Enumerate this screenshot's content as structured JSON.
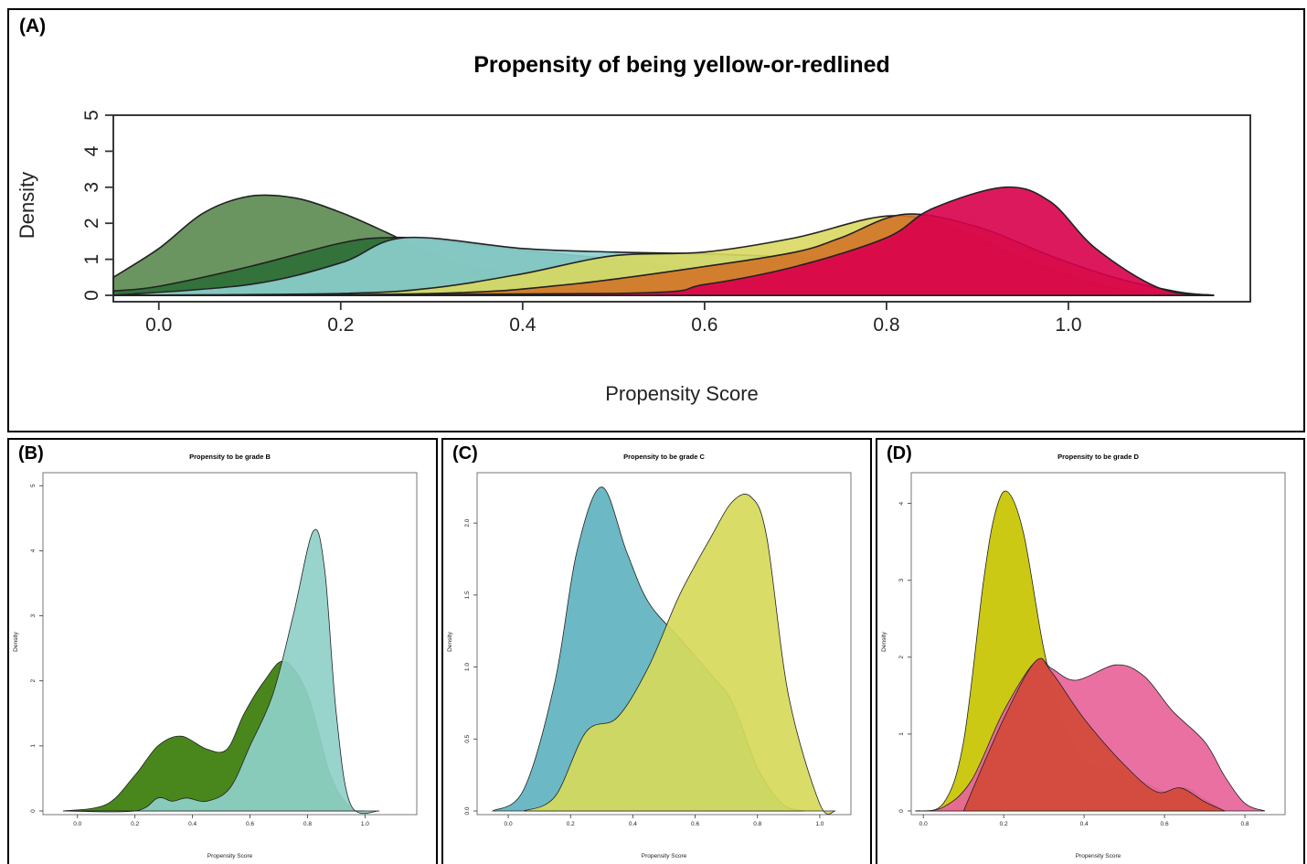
{
  "panels": [
    {
      "label": "(A)"
    },
    {
      "label": "(B)"
    },
    {
      "label": "(C)"
    },
    {
      "label": "(D)"
    }
  ],
  "chart_data": [
    {
      "type": "area",
      "title": "Propensity of being yellow-or-redlined",
      "xlabel": "Propensity Score",
      "ylabel": "Density",
      "xlim": [
        -0.05,
        1.2
      ],
      "ylim": [
        0,
        5
      ],
      "x_ticks": [
        0.0,
        0.2,
        0.4,
        0.6,
        0.8,
        1.0
      ],
      "x_tick_labels": [
        "0.0",
        "0.2",
        "0.4",
        "0.6",
        "0.8",
        "1.0"
      ],
      "y_ticks": [
        0,
        1,
        2,
        3,
        4,
        5
      ],
      "y_tick_labels": [
        "0",
        "1",
        "2",
        "3",
        "4",
        "5"
      ],
      "series": [
        {
          "color": "#5a8a50",
          "x": [
            -0.05,
            0.0,
            0.05,
            0.1,
            0.15,
            0.2,
            0.25,
            0.3,
            0.35,
            0.4,
            0.5,
            0.6,
            0.7,
            0.8,
            0.9,
            1.0,
            1.1,
            1.16
          ],
          "y": [
            0.5,
            1.3,
            2.3,
            2.75,
            2.7,
            2.3,
            1.75,
            1.15,
            0.75,
            0.55,
            0.45,
            0.42,
            0.3,
            0.22,
            0.12,
            0.05,
            0.02,
            0.0
          ]
        },
        {
          "color": "#2e6e37",
          "x": [
            -0.05,
            0.0,
            0.1,
            0.2,
            0.25,
            0.3,
            0.4,
            0.5,
            0.6,
            0.7,
            0.75,
            0.8,
            0.9,
            1.0,
            1.16
          ],
          "y": [
            0.12,
            0.25,
            0.8,
            1.45,
            1.6,
            1.55,
            1.25,
            1.0,
            0.7,
            0.35,
            0.25,
            0.22,
            0.1,
            0.04,
            0.0
          ]
        },
        {
          "color": "#8dcfcf",
          "x": [
            -0.05,
            0.1,
            0.2,
            0.27,
            0.4,
            0.5,
            0.6,
            0.7,
            0.8,
            0.9,
            1.0,
            1.1,
            1.16
          ],
          "y": [
            0.0,
            0.3,
            0.9,
            1.6,
            1.3,
            1.2,
            1.15,
            1.05,
            0.85,
            0.45,
            0.15,
            0.03,
            0.0
          ]
        },
        {
          "color": "#d8d860",
          "x": [
            -0.05,
            0.2,
            0.3,
            0.4,
            0.5,
            0.6,
            0.7,
            0.8,
            0.87,
            0.95,
            1.05,
            1.16
          ],
          "y": [
            0.0,
            0.05,
            0.2,
            0.6,
            1.1,
            1.2,
            1.6,
            2.2,
            1.9,
            1.0,
            0.2,
            0.0
          ]
        },
        {
          "color": "#d07428",
          "x": [
            -0.05,
            0.3,
            0.45,
            0.6,
            0.7,
            0.75,
            0.82,
            0.9,
            0.98,
            1.05,
            1.12,
            1.16
          ],
          "y": [
            0.0,
            0.05,
            0.3,
            0.8,
            1.2,
            1.6,
            2.25,
            1.9,
            1.1,
            0.5,
            0.1,
            0.0
          ]
        },
        {
          "color": "#d9004c",
          "x": [
            -0.05,
            0.5,
            0.6,
            0.7,
            0.8,
            0.85,
            0.93,
            0.98,
            1.03,
            1.1,
            1.16
          ],
          "y": [
            0.0,
            0.05,
            0.3,
            0.8,
            1.6,
            2.4,
            3.0,
            2.6,
            1.3,
            0.2,
            0.0
          ]
        }
      ]
    },
    {
      "type": "area",
      "title": "Propensity to be grade B",
      "xlabel": "Propensity Score",
      "ylabel": "Density",
      "xlim": [
        -0.12,
        1.18
      ],
      "ylim": [
        0,
        5.2
      ],
      "x_ticks": [
        0.0,
        0.2,
        0.4,
        0.6,
        0.8,
        1.0
      ],
      "x_tick_labels": [
        "0.0",
        "0.2",
        "0.4",
        "0.6",
        "0.8",
        "1.0"
      ],
      "y_ticks": [
        0,
        1,
        2,
        3,
        4,
        5
      ],
      "y_tick_labels": [
        "0",
        "1",
        "2",
        "3",
        "4",
        "5"
      ],
      "series": [
        {
          "color": "#3a7d0a",
          "x": [
            -0.05,
            0.1,
            0.2,
            0.28,
            0.36,
            0.45,
            0.52,
            0.58,
            0.65,
            0.72,
            0.8,
            0.88,
            0.95,
            1.0
          ],
          "y": [
            0.0,
            0.1,
            0.55,
            1.0,
            1.15,
            0.95,
            0.95,
            1.5,
            2.0,
            2.3,
            1.8,
            0.55,
            0.05,
            0.0
          ]
        },
        {
          "color": "#8fd0c8",
          "x": [
            -0.05,
            0.2,
            0.28,
            0.33,
            0.38,
            0.45,
            0.53,
            0.6,
            0.68,
            0.75,
            0.82,
            0.86,
            0.9,
            0.95,
            1.05
          ],
          "y": [
            0.0,
            0.0,
            0.2,
            0.15,
            0.2,
            0.15,
            0.35,
            1.0,
            1.8,
            3.0,
            4.3,
            3.7,
            1.5,
            0.1,
            0.0
          ]
        }
      ]
    },
    {
      "type": "area",
      "title": "Propensity to be grade C",
      "xlabel": "Propensity Score",
      "ylabel": "Density",
      "xlim": [
        -0.1,
        1.1
      ],
      "ylim": [
        0,
        2.35
      ],
      "x_ticks": [
        0.0,
        0.2,
        0.4,
        0.6,
        0.8,
        1.0
      ],
      "x_tick_labels": [
        "0.0",
        "0.2",
        "0.4",
        "0.6",
        "0.8",
        "1.0"
      ],
      "y_ticks": [
        0,
        0.5,
        1.0,
        1.5,
        2.0
      ],
      "y_tick_labels": [
        "0.0",
        "0.5",
        "1.0",
        "1.5",
        "2.0"
      ],
      "series": [
        {
          "color": "#5fb3c0",
          "x": [
            -0.05,
            0.05,
            0.15,
            0.22,
            0.3,
            0.38,
            0.45,
            0.55,
            0.65,
            0.72,
            0.8,
            0.88,
            0.95
          ],
          "y": [
            0.0,
            0.15,
            0.9,
            1.8,
            2.25,
            1.8,
            1.45,
            1.2,
            0.95,
            0.75,
            0.3,
            0.05,
            0.0
          ]
        },
        {
          "color": "#d6d95a",
          "x": [
            0.05,
            0.15,
            0.25,
            0.35,
            0.45,
            0.55,
            0.65,
            0.72,
            0.78,
            0.83,
            0.9,
            1.0,
            1.05
          ],
          "y": [
            0.0,
            0.1,
            0.55,
            0.65,
            1.0,
            1.5,
            1.9,
            2.15,
            2.18,
            1.9,
            0.8,
            0.05,
            0.0
          ]
        }
      ]
    },
    {
      "type": "area",
      "title": "Propensity to be grade D",
      "xlabel": "Propensity Score",
      "ylabel": "Density",
      "xlim": [
        -0.03,
        0.9
      ],
      "ylim": [
        0,
        4.4
      ],
      "x_ticks": [
        0.0,
        0.2,
        0.4,
        0.6,
        0.8
      ],
      "x_tick_labels": [
        "0.0",
        "0.2",
        "0.4",
        "0.6",
        "0.8"
      ],
      "y_ticks": [
        0,
        1,
        2,
        3,
        4
      ],
      "y_tick_labels": [
        "0",
        "1",
        "2",
        "3",
        "4"
      ],
      "series": [
        {
          "color": "#c8c400",
          "x": [
            -0.02,
            0.05,
            0.1,
            0.15,
            0.18,
            0.21,
            0.25,
            0.3,
            0.35,
            0.42,
            0.5,
            0.6,
            0.65,
            0.7,
            0.75
          ],
          "y": [
            0.0,
            0.1,
            0.9,
            3.0,
            3.9,
            4.15,
            3.6,
            2.1,
            1.1,
            0.6,
            0.5,
            0.25,
            0.3,
            0.15,
            0.0
          ]
        },
        {
          "color": "#e8649a",
          "x": [
            -0.02,
            0.05,
            0.12,
            0.2,
            0.28,
            0.32,
            0.38,
            0.48,
            0.55,
            0.62,
            0.7,
            0.75,
            0.8,
            0.85
          ],
          "y": [
            0.0,
            0.05,
            0.4,
            1.3,
            1.95,
            1.85,
            1.7,
            1.9,
            1.75,
            1.3,
            0.9,
            0.45,
            0.1,
            0.0
          ]
        },
        {
          "color": "#d24a38",
          "x": [
            0.1,
            0.2,
            0.28,
            0.32,
            0.4,
            0.5,
            0.58,
            0.64,
            0.7,
            0.75
          ],
          "y": [
            0.0,
            1.2,
            1.95,
            1.8,
            1.2,
            0.6,
            0.25,
            0.3,
            0.12,
            0.0
          ]
        }
      ]
    }
  ]
}
